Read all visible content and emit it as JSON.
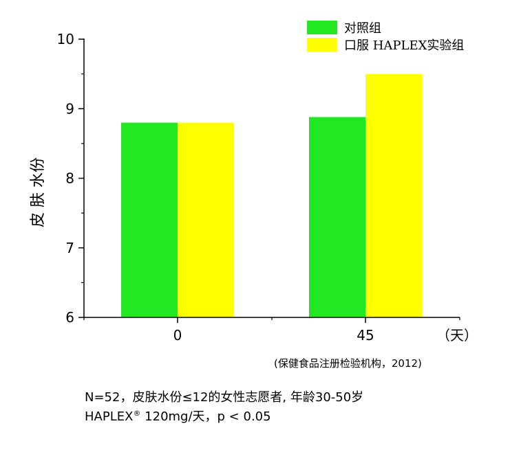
{
  "chart_data": {
    "type": "bar",
    "categories": [
      "0",
      "45"
    ],
    "series": [
      {
        "name": "对照组",
        "color": "#22e822",
        "values": [
          8.8,
          8.88
        ]
      },
      {
        "name": "口服 HAPLEX实验组",
        "color": "#ffff00",
        "values": [
          8.8,
          9.5
        ]
      }
    ],
    "ylabel": "皮 肤 水份",
    "xlabel": "（天）",
    "ylim": [
      6,
      10
    ],
    "yticks": [
      6,
      7,
      8,
      9,
      10
    ],
    "grid": false,
    "legend": "top-right"
  },
  "source": "(保健食品注册检验机构，2012)",
  "footnote": {
    "line1": "N=52，皮肤水份≤12的女性志愿者, 年龄30-50岁",
    "line2_pre": "HAPLEX",
    "line2_sup": "®",
    "line2_post": " 120mg/天，p < 0.05"
  }
}
